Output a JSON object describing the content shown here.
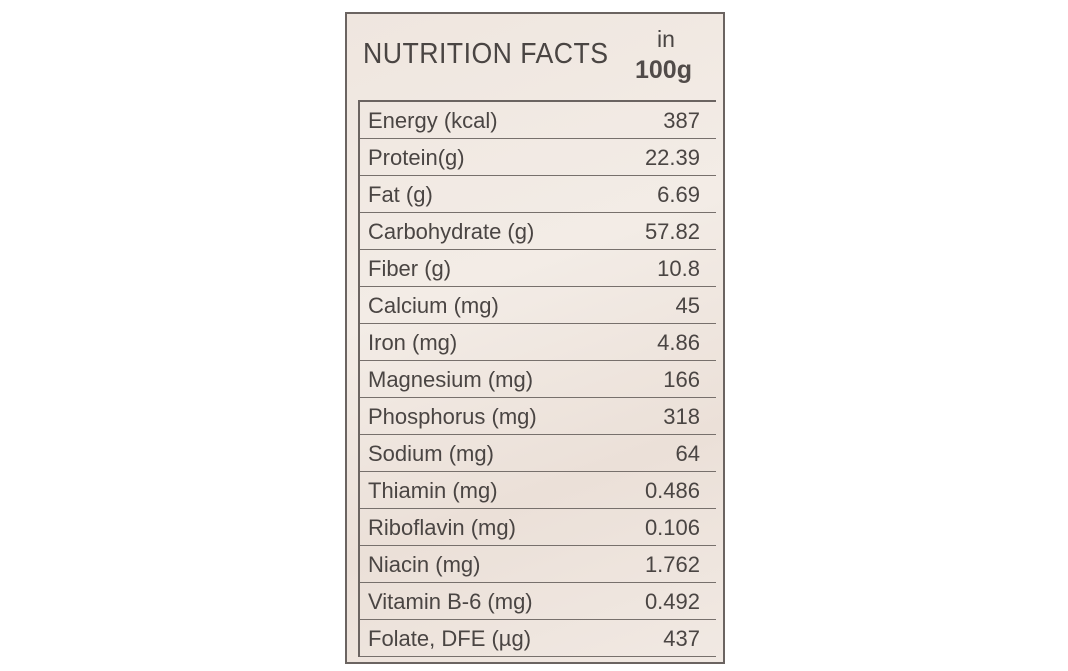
{
  "header": {
    "title": "NUTRITION FACTS",
    "unit_top": "in",
    "unit_bottom": "100g"
  },
  "table": {
    "rows": [
      [
        "Energy (kcal)",
        "387"
      ],
      [
        "Protein(g)",
        "22.39"
      ],
      [
        "Fat (g)",
        "6.69"
      ],
      [
        "Carbohydrate (g)",
        "57.82"
      ],
      [
        "Fiber (g)",
        "10.8"
      ],
      [
        "Calcium (mg)",
        "45"
      ],
      [
        "Iron (mg)",
        "4.86"
      ],
      [
        "Magnesium (mg)",
        "166"
      ],
      [
        "Phosphorus (mg)",
        "318"
      ],
      [
        "Sodium (mg)",
        "64"
      ],
      [
        "Thiamin (mg)",
        "0.486"
      ],
      [
        "Riboflavin (mg)",
        "0.106"
      ],
      [
        "Niacin (mg)",
        "1.762"
      ],
      [
        "Vitamin B-6 (mg)",
        "0.492"
      ],
      [
        "Folate, DFE (µg)",
        "437"
      ]
    ]
  }
}
